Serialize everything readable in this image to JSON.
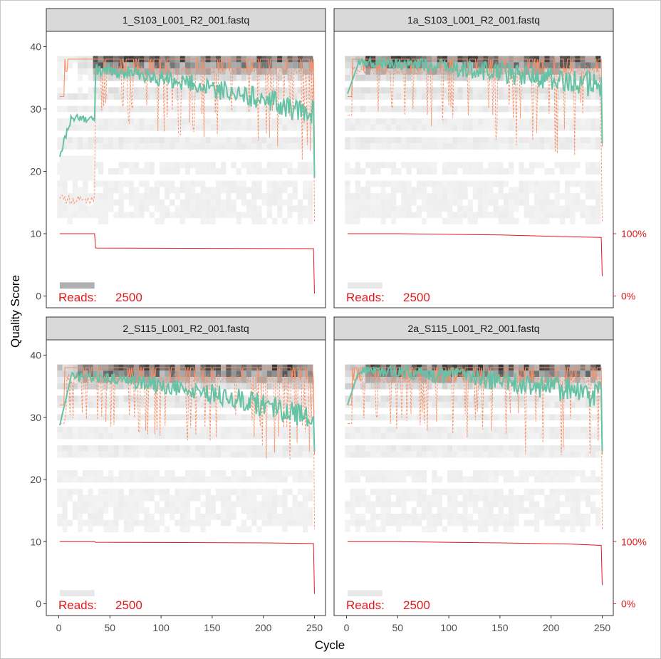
{
  "chart_data": {
    "type": "heatmap",
    "xlabel": "Cycle",
    "ylabel": "Quality Score",
    "xlim": [
      0,
      250
    ],
    "ylim": [
      0,
      41
    ],
    "x_ticks": [
      "0",
      "50",
      "100",
      "150",
      "200",
      "250"
    ],
    "y_ticks": [
      "0",
      "10",
      "20",
      "30",
      "40"
    ],
    "secondary_y_ticks": [
      "0%",
      "100%"
    ],
    "grid": false,
    "colors": {
      "mean_line": "#66c2a5",
      "quartile_line": "#fc8d62",
      "read_fraction_line": "#e41a1c",
      "reads_text": "#e41a1c",
      "strip_bg": "#d9d9d9",
      "heatmap_low": "#f7f7f7",
      "heatmap_high": "#000000"
    },
    "panels": [
      {
        "title": "1_S103_L001_R2_001.fastq",
        "reads_label": "Reads:",
        "reads": "2500",
        "drop_cycle": 35,
        "mean_start": 22,
        "mean_pre": 28.5,
        "mean_post": 36.5,
        "mean_end": 29,
        "q25_pre": 15.5,
        "read_fraction": [
          [
            1,
            100
          ],
          [
            35,
            100
          ],
          [
            36,
            77
          ],
          [
            249,
            76
          ],
          [
            250,
            4
          ]
        ]
      },
      {
        "title": "1a_S103_L001_R2_001.fastq",
        "reads_label": "Reads:",
        "reads": "2500",
        "drop_cycle": null,
        "mean_start": 32,
        "mean_pre": 37.5,
        "mean_post": 37.5,
        "mean_end": 33.5,
        "q25_pre": 35,
        "read_fraction": [
          [
            1,
            100
          ],
          [
            50,
            100
          ],
          [
            150,
            98
          ],
          [
            220,
            95
          ],
          [
            249,
            94
          ],
          [
            250,
            32
          ]
        ]
      },
      {
        "title": "2_S115_L001_R2_001.fastq",
        "reads_label": "Reads:",
        "reads": "2500",
        "drop_cycle": null,
        "mean_start": 28,
        "mean_pre": 37,
        "mean_post": 36.5,
        "mean_end": 30,
        "q25_pre": 35,
        "read_fraction": [
          [
            1,
            100
          ],
          [
            35,
            100
          ],
          [
            36,
            99
          ],
          [
            200,
            98
          ],
          [
            249,
            97
          ],
          [
            250,
            16
          ]
        ]
      },
      {
        "title": "2a_S115_L001_R2_001.fastq",
        "reads_label": "Reads:",
        "reads": "2500",
        "drop_cycle": null,
        "mean_start": 31.5,
        "mean_pre": 37.5,
        "mean_post": 37.5,
        "mean_end": 33.5,
        "q25_pre": 35,
        "read_fraction": [
          [
            1,
            100
          ],
          [
            50,
            100
          ],
          [
            150,
            98
          ],
          [
            220,
            96
          ],
          [
            249,
            94
          ],
          [
            250,
            30
          ]
        ]
      }
    ]
  }
}
